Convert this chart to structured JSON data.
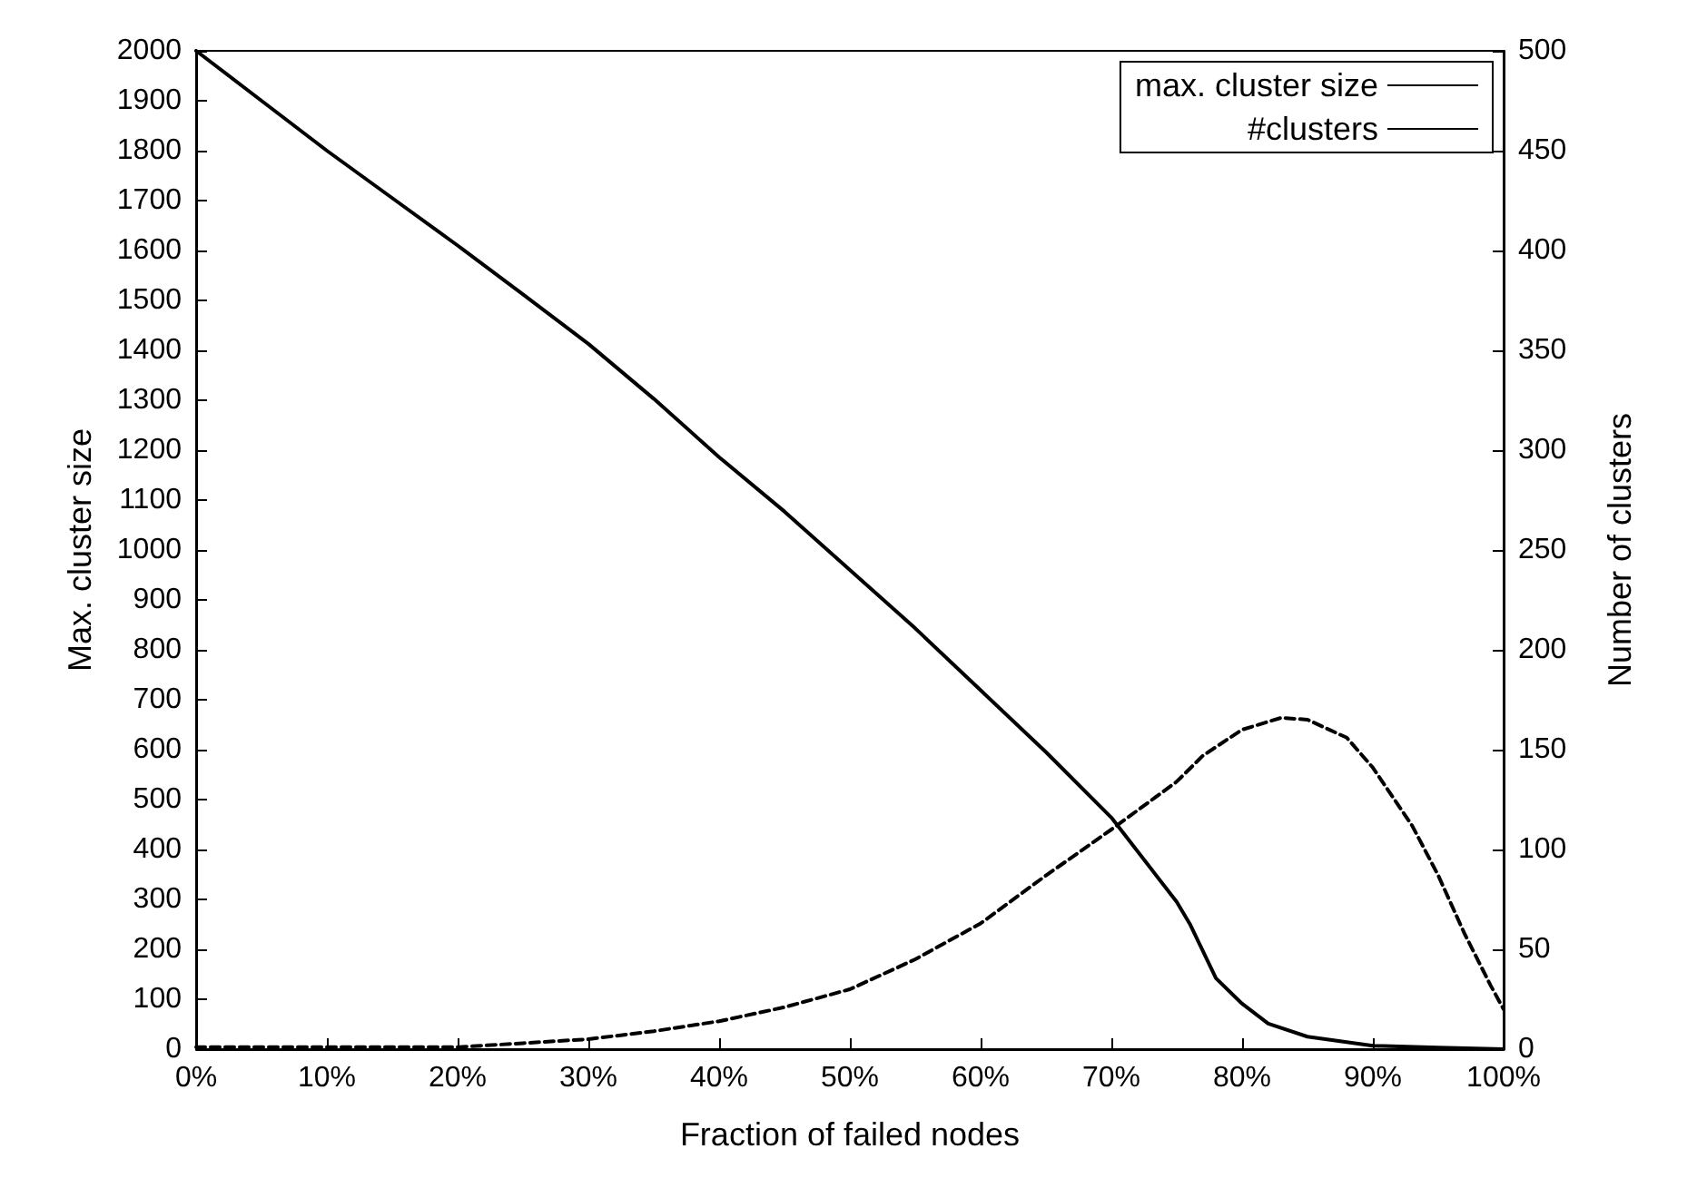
{
  "chart_data": {
    "type": "line",
    "xlabel": "Fraction of failed nodes",
    "ylabel": "Max. cluster size",
    "y2label": "Number of clusters",
    "xlim": [
      0,
      100
    ],
    "xticks": [
      {
        "value": 0,
        "label": "0%"
      },
      {
        "value": 10,
        "label": "10%"
      },
      {
        "value": 20,
        "label": "20%"
      },
      {
        "value": 30,
        "label": "30%"
      },
      {
        "value": 40,
        "label": "40%"
      },
      {
        "value": 50,
        "label": "50%"
      },
      {
        "value": 60,
        "label": "60%"
      },
      {
        "value": 70,
        "label": "70%"
      },
      {
        "value": 80,
        "label": "80%"
      },
      {
        "value": 90,
        "label": "90%"
      },
      {
        "value": 100,
        "label": "100%"
      }
    ],
    "ylim": [
      0,
      2000
    ],
    "yticks": [
      0,
      100,
      200,
      300,
      400,
      500,
      600,
      700,
      800,
      900,
      1000,
      1100,
      1200,
      1300,
      1400,
      1500,
      1600,
      1700,
      1800,
      1900,
      2000
    ],
    "y2lim": [
      0,
      500
    ],
    "y2ticks": [
      0,
      50,
      100,
      150,
      200,
      250,
      300,
      350,
      400,
      450,
      500
    ],
    "grid": false,
    "legend": "top right",
    "marker": "none",
    "series": [
      {
        "name": "max. cluster size",
        "color": "#000000",
        "line_style": "solid",
        "x": [
          0,
          5,
          10,
          15,
          20,
          25,
          30,
          35,
          40,
          45,
          50,
          55,
          60,
          65,
          70,
          75,
          76,
          78,
          80,
          82,
          85,
          90,
          95,
          100
        ],
        "values": [
          2000,
          1900,
          1800,
          1705,
          1610,
          1512,
          1413,
          1303,
          1186,
          1077,
          960,
          843,
          719,
          595,
          464,
          295,
          251,
          142,
          91,
          51,
          25,
          7,
          3,
          0
        ]
      },
      {
        "name": "#clusters",
        "color": "#000000",
        "line_style": "dashed",
        "axis": "y2",
        "x": [
          0,
          5,
          10,
          15,
          20,
          25,
          30,
          35,
          40,
          45,
          50,
          55,
          60,
          65,
          70,
          75,
          77,
          80,
          83,
          85,
          88,
          90,
          93,
          95,
          97,
          99,
          100
        ],
        "values": [
          1,
          1,
          1,
          1,
          1,
          3,
          5,
          9,
          14,
          21,
          30,
          45,
          63,
          87,
          110,
          134,
          147,
          160,
          166,
          165,
          156,
          141,
          112,
          87,
          58,
          32,
          20
        ]
      }
    ]
  }
}
